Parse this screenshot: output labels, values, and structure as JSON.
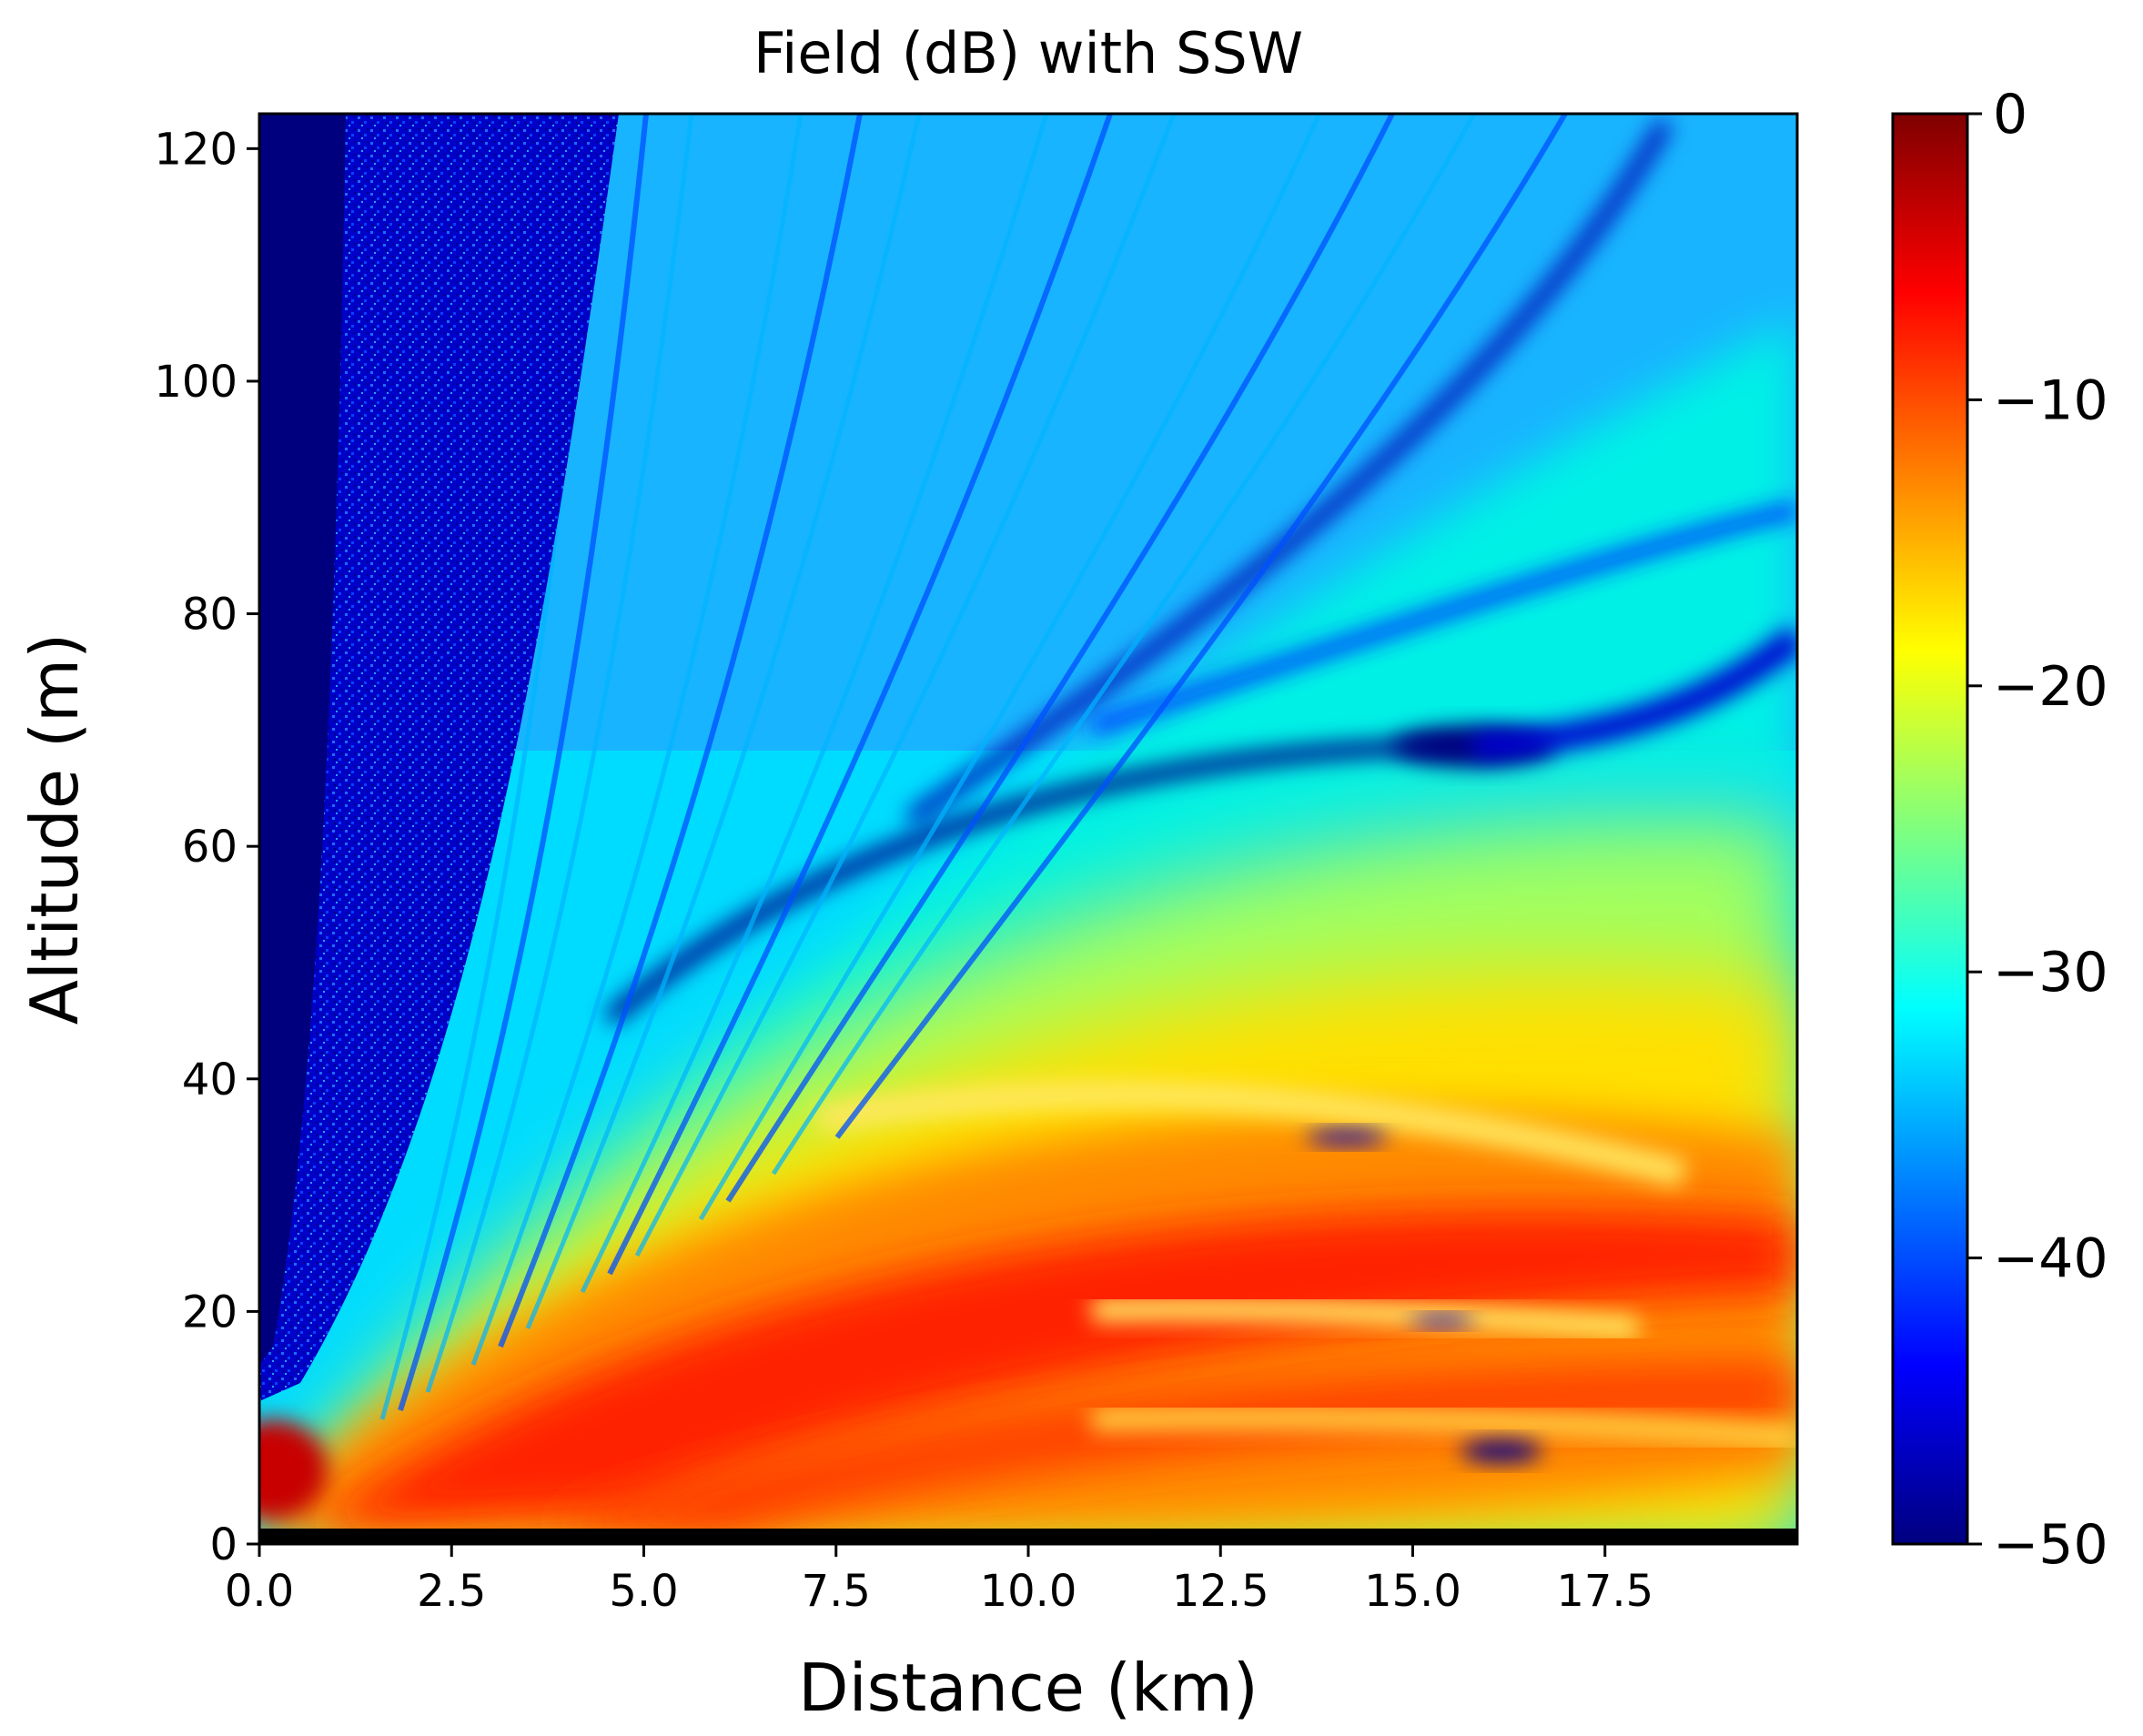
{
  "chart_data": {
    "type": "heatmap",
    "title": "Field (dB) with SSW",
    "xlabel": "Distance (km)",
    "ylabel": "Altitude (m)",
    "xlim": [
      0,
      20
    ],
    "ylim": [
      0,
      123
    ],
    "x_ticks": [
      "0.0",
      "2.5",
      "5.0",
      "7.5",
      "10.0",
      "12.5",
      "15.0",
      "17.5"
    ],
    "x_tick_values": [
      0,
      2.5,
      5,
      7.5,
      10,
      12.5,
      15,
      17.5
    ],
    "y_ticks": [
      "0",
      "20",
      "40",
      "60",
      "80",
      "100",
      "120"
    ],
    "y_tick_values": [
      0,
      20,
      40,
      60,
      80,
      100,
      120
    ],
    "colorbar": {
      "range": [
        -50,
        0
      ],
      "ticks": [
        "0",
        "−10",
        "−20",
        "−30",
        "−40",
        "−50"
      ],
      "tick_values": [
        0,
        -10,
        -20,
        -30,
        -40,
        -50
      ],
      "colormap": "jet"
    },
    "colormap_stops": [
      "#00007f",
      "#0000ff",
      "#007fff",
      "#00ffff",
      "#7fff7f",
      "#ffff00",
      "#ff7f00",
      "#ff0000",
      "#7f0000"
    ]
  }
}
